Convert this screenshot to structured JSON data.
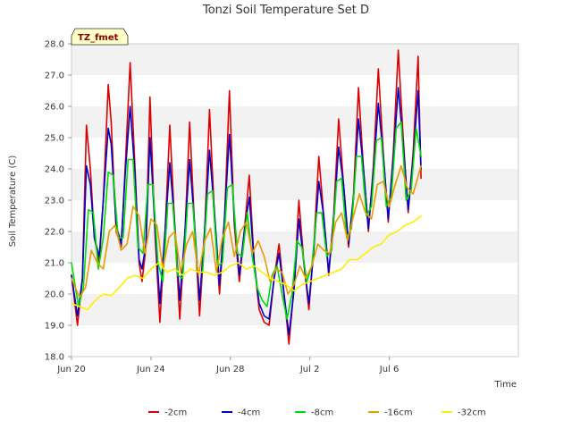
{
  "chart_data": {
    "type": "line",
    "title": "Tonzi Soil Temperature Set D",
    "xlabel": "Time",
    "ylabel": "Soil Temperature (C)",
    "badge": "TZ_fmet",
    "ylim": [
      18.0,
      28.0
    ],
    "xlim": [
      0,
      22.5
    ],
    "x_unit": "days after Jun 20",
    "yticks": [
      "18.0",
      "19.0",
      "20.0",
      "21.0",
      "22.0",
      "23.0",
      "24.0",
      "25.0",
      "26.0",
      "27.0",
      "28.0"
    ],
    "xticks": [
      {
        "value": 0,
        "label": "Jun 20"
      },
      {
        "value": 4,
        "label": "Jun 24"
      },
      {
        "value": 8,
        "label": "Jun 28"
      },
      {
        "value": 12,
        "label": "Jul 2"
      },
      {
        "value": 16,
        "label": "Jul 6"
      }
    ],
    "grid": "horizontal bands",
    "legend_position": "bottom",
    "series": [
      {
        "name": "-2cm",
        "color": "#dd0000",
        "x": [
          0,
          0.3,
          0.55,
          0.75,
          0.95,
          1.15,
          1.4,
          1.6,
          1.85,
          2,
          2.25,
          2.5,
          2.7,
          2.95,
          3.2,
          3.4,
          3.55,
          3.75,
          3.95,
          4.2,
          4.45,
          4.7,
          4.95,
          5.2,
          5.45,
          5.7,
          5.95,
          6.2,
          6.45,
          6.7,
          6.95,
          7.2,
          7.45,
          7.7,
          7.95,
          8.2,
          8.45,
          8.7,
          8.95,
          9.2,
          9.45,
          9.7,
          9.95,
          10.2,
          10.45,
          10.7,
          10.95,
          11.2,
          11.45,
          11.7,
          11.95,
          12.2,
          12.45,
          12.7,
          12.95,
          13.2,
          13.45,
          13.7,
          13.95,
          14.2,
          14.45,
          14.7,
          14.95,
          15.2,
          15.45,
          15.7,
          15.95,
          16.2,
          16.45,
          16.7,
          16.95,
          17.2,
          17.45,
          17.6
        ],
        "y": [
          20.6,
          19.0,
          20.5,
          25.4,
          24.0,
          21.8,
          21.0,
          23.0,
          26.7,
          25.5,
          22.0,
          21.5,
          24.0,
          27.4,
          24.0,
          21.0,
          20.4,
          21.5,
          26.3,
          22.0,
          19.1,
          21.8,
          25.4,
          22.1,
          19.2,
          21.8,
          25.5,
          22.1,
          19.3,
          21.9,
          25.9,
          22.5,
          20.0,
          22.3,
          26.5,
          22.2,
          20.4,
          22.0,
          23.8,
          21.0,
          19.5,
          19.1,
          19.0,
          20.5,
          21.6,
          20.0,
          18.4,
          20.2,
          23.0,
          21.0,
          19.5,
          21.5,
          24.4,
          22.5,
          20.6,
          22.5,
          25.6,
          23.5,
          21.5,
          23.2,
          26.6,
          24.0,
          22.0,
          24.1,
          27.2,
          24.5,
          22.3,
          24.5,
          27.8,
          25.0,
          22.6,
          24.5,
          27.6,
          23.7
        ]
      },
      {
        "name": "-4cm",
        "color": "#0000cc",
        "x": [
          0,
          0.3,
          0.55,
          0.75,
          0.95,
          1.15,
          1.4,
          1.6,
          1.85,
          2,
          2.25,
          2.5,
          2.7,
          2.95,
          3.2,
          3.4,
          3.55,
          3.75,
          3.95,
          4.2,
          4.45,
          4.7,
          4.95,
          5.2,
          5.45,
          5.7,
          5.95,
          6.2,
          6.45,
          6.7,
          6.95,
          7.2,
          7.45,
          7.7,
          7.95,
          8.2,
          8.45,
          8.7,
          8.95,
          9.2,
          9.45,
          9.7,
          9.95,
          10.2,
          10.45,
          10.7,
          10.95,
          11.2,
          11.45,
          11.7,
          11.95,
          12.2,
          12.45,
          12.7,
          12.95,
          13.2,
          13.45,
          13.7,
          13.95,
          14.2,
          14.45,
          14.7,
          14.95,
          15.2,
          15.45,
          15.7,
          15.95,
          16.2,
          16.45,
          16.7,
          16.95,
          17.2,
          17.45,
          17.6
        ],
        "y": [
          20.6,
          19.3,
          20.5,
          24.1,
          23.5,
          21.8,
          21.2,
          23.0,
          25.3,
          24.8,
          22.2,
          21.6,
          23.8,
          26.0,
          23.8,
          21.1,
          20.8,
          21.6,
          25.0,
          22.2,
          19.7,
          21.9,
          24.2,
          22.2,
          19.8,
          21.9,
          24.3,
          22.2,
          19.8,
          22.0,
          24.6,
          22.6,
          20.3,
          22.4,
          25.1,
          22.4,
          20.6,
          22.0,
          23.1,
          21.0,
          19.7,
          19.3,
          19.2,
          20.5,
          21.3,
          20.0,
          18.7,
          20.1,
          22.4,
          21.0,
          19.7,
          21.4,
          23.6,
          22.5,
          20.7,
          22.4,
          24.7,
          23.5,
          21.6,
          23.1,
          25.6,
          24.0,
          22.1,
          23.9,
          26.1,
          24.4,
          22.4,
          24.3,
          26.6,
          24.8,
          22.7,
          24.3,
          26.5,
          24.0
        ]
      },
      {
        "name": "-8cm",
        "color": "#00dd00",
        "x": [
          0,
          0.35,
          0.6,
          0.85,
          1.1,
          1.35,
          1.6,
          1.85,
          2.1,
          2.35,
          2.6,
          2.85,
          3.1,
          3.35,
          3.6,
          3.85,
          4.1,
          4.35,
          4.6,
          4.85,
          5.1,
          5.35,
          5.6,
          5.85,
          6.1,
          6.35,
          6.6,
          6.85,
          7.1,
          7.35,
          7.6,
          7.85,
          8.1,
          8.35,
          8.6,
          8.85,
          9.1,
          9.35,
          9.6,
          9.85,
          10.1,
          10.35,
          10.6,
          10.85,
          11.1,
          11.35,
          11.6,
          11.85,
          12.1,
          12.35,
          12.6,
          12.85,
          13.1,
          13.35,
          13.6,
          13.85,
          14.1,
          14.35,
          14.6,
          14.85,
          15.1,
          15.35,
          15.6,
          15.85,
          16.1,
          16.35,
          16.6,
          16.85,
          17.1,
          17.35,
          17.6
        ],
        "y": [
          21.0,
          19.6,
          20.2,
          22.7,
          22.6,
          20.8,
          21.8,
          23.9,
          23.8,
          21.8,
          21.8,
          24.3,
          24.3,
          21.5,
          21.3,
          23.5,
          23.5,
          21.0,
          20.4,
          22.9,
          22.9,
          20.6,
          20.5,
          22.9,
          22.9,
          20.7,
          20.7,
          23.2,
          23.3,
          20.9,
          21.0,
          23.4,
          23.5,
          21.3,
          21.2,
          22.6,
          21.2,
          20.2,
          19.8,
          19.6,
          20.6,
          20.9,
          20.0,
          19.2,
          20.0,
          21.7,
          21.5,
          20.4,
          20.9,
          22.6,
          22.6,
          21.2,
          21.4,
          23.6,
          23.7,
          21.8,
          22.1,
          24.4,
          24.4,
          22.5,
          22.8,
          24.9,
          25.0,
          22.8,
          23.1,
          25.3,
          25.5,
          23.0,
          23.3,
          25.3,
          24.4
        ]
      },
      {
        "name": "-16cm",
        "color": "#ee9900",
        "x": [
          0,
          0.4,
          0.7,
          1.0,
          1.3,
          1.6,
          1.9,
          2.2,
          2.5,
          2.8,
          3.1,
          3.4,
          3.7,
          4.0,
          4.3,
          4.6,
          4.9,
          5.2,
          5.5,
          5.8,
          6.1,
          6.4,
          6.7,
          7.0,
          7.3,
          7.6,
          7.9,
          8.2,
          8.5,
          8.8,
          9.1,
          9.4,
          9.7,
          10.0,
          10.3,
          10.6,
          10.9,
          11.2,
          11.5,
          11.8,
          12.1,
          12.4,
          12.7,
          13.0,
          13.3,
          13.6,
          13.9,
          14.2,
          14.5,
          14.8,
          15.1,
          15.4,
          15.7,
          16.0,
          16.3,
          16.6,
          16.9,
          17.2,
          17.6
        ],
        "y": [
          20.5,
          19.9,
          20.2,
          21.4,
          21.0,
          20.8,
          22.0,
          22.2,
          21.4,
          21.6,
          22.8,
          22.5,
          21.3,
          22.4,
          22.2,
          20.8,
          21.8,
          22.0,
          20.7,
          21.6,
          22.0,
          20.6,
          21.7,
          22.1,
          20.7,
          21.8,
          22.3,
          21.2,
          22.0,
          22.3,
          21.3,
          21.7,
          21.2,
          20.4,
          20.8,
          20.7,
          20.0,
          20.3,
          20.9,
          20.5,
          20.9,
          21.6,
          21.4,
          21.3,
          22.3,
          22.6,
          21.7,
          22.5,
          23.2,
          22.6,
          22.4,
          23.5,
          23.6,
          22.8,
          23.5,
          24.1,
          23.4,
          23.2,
          24.1
        ]
      },
      {
        "name": "-32cm",
        "color": "#ffee00",
        "x": [
          0,
          0.4,
          0.8,
          1.2,
          1.6,
          2.0,
          2.4,
          2.8,
          3.2,
          3.6,
          4.0,
          4.4,
          4.8,
          5.2,
          5.6,
          6.0,
          6.4,
          6.8,
          7.2,
          7.6,
          8.0,
          8.4,
          8.8,
          9.2,
          9.6,
          10.0,
          10.4,
          10.8,
          11.2,
          11.6,
          12.0,
          12.4,
          12.8,
          13.2,
          13.6,
          14.0,
          14.4,
          14.8,
          15.2,
          15.6,
          16.0,
          16.4,
          16.8,
          17.2,
          17.6
        ],
        "y": [
          19.7,
          19.6,
          19.5,
          19.8,
          20.0,
          19.95,
          20.2,
          20.5,
          20.6,
          20.5,
          20.8,
          21.0,
          20.7,
          20.8,
          20.6,
          20.8,
          20.7,
          20.7,
          20.6,
          20.7,
          20.9,
          21.0,
          20.8,
          20.9,
          20.7,
          20.5,
          20.4,
          20.3,
          20.1,
          20.3,
          20.4,
          20.5,
          20.6,
          20.7,
          20.8,
          21.1,
          21.1,
          21.3,
          21.5,
          21.6,
          21.9,
          22.0,
          22.2,
          22.3,
          22.5
        ]
      }
    ]
  }
}
